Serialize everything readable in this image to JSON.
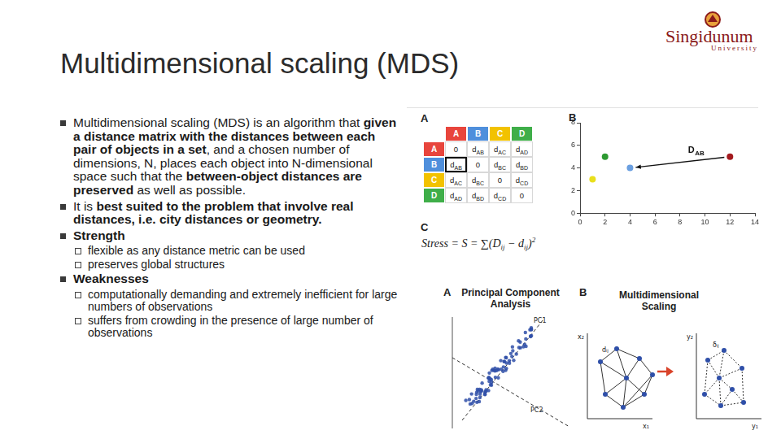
{
  "title": "Multidimensional scaling (MDS)",
  "logo": {
    "name": "Singidunum",
    "subtitle": "University"
  },
  "bullets": [
    {
      "runs": [
        {
          "text": "Multidimensional scaling (MDS) is an algorithm that "
        },
        {
          "text": "given a distance matrix with the distances between each pair of objects in a set",
          "bold": true
        },
        {
          "text": ", and a chosen number of dimensions, N, places each object into N-dimensional space such that the "
        },
        {
          "text": "between-object distances are preserved",
          "bold": true
        },
        {
          "text": " as well as possible."
        }
      ]
    },
    {
      "runs": [
        {
          "text": "It is "
        },
        {
          "text": "best suited to the problem that involve real distances, i.e. city distances or geometry.",
          "bold": true
        }
      ]
    },
    {
      "runs": [
        {
          "text": "Strength",
          "bold": true
        }
      ],
      "items": [
        "flexible as any distance metric can be used",
        "preserves global structures"
      ]
    },
    {
      "runs": [
        {
          "text": "Weaknesses",
          "bold": true
        }
      ],
      "items": [
        "computationally demanding and extremely inefficient for large numbers of observations",
        "suffers from crowding in the presence of large number of observations"
      ]
    }
  ],
  "distance_table": {
    "panel": "A",
    "columns": [
      {
        "name": "A",
        "color": "#e8453c"
      },
      {
        "name": "B",
        "color": "#4f8fdc"
      },
      {
        "name": "C",
        "color": "#f2c200"
      },
      {
        "name": "D",
        "color": "#3fae49"
      }
    ],
    "rows": [
      [
        0,
        "dAB",
        "dAC",
        "dAD"
      ],
      [
        "dAB",
        0,
        "dBC",
        "dBD"
      ],
      [
        "dAC",
        "dBC",
        0,
        "dCD"
      ],
      [
        "dAD",
        "dBD",
        "dCD",
        0
      ]
    ]
  },
  "chart_panel": "B",
  "chart_data": {
    "type": "scatter",
    "x": [
      12,
      4,
      1,
      2
    ],
    "values": [
      5,
      4,
      3,
      5
    ],
    "colors": [
      "#a31a1e",
      "#6a9fe0",
      "#e9df1c",
      "#2e9a32"
    ],
    "xlim": [
      0,
      14
    ],
    "ylim": [
      0,
      8
    ],
    "xticks": [
      0,
      2,
      4,
      6,
      8,
      10,
      12,
      14
    ],
    "yticks": [
      0,
      2,
      4,
      6,
      8
    ],
    "grid": false,
    "annotations": [
      {
        "text": "DAB"
      }
    ]
  },
  "formula_panel": "C",
  "formula": [
    {
      "text": "Stress = S = ∑(D"
    },
    {
      "sub": "ij"
    },
    {
      "text": " − d"
    },
    {
      "sub": "ij"
    },
    {
      "text": ")"
    },
    {
      "sup": "2"
    }
  ],
  "comparison": {
    "pca": {
      "panel": "A",
      "title": "Principal Component Analysis",
      "axes": [
        "PC1",
        "PC2"
      ]
    },
    "mds": {
      "panel": "B",
      "title": "Multidimensional Scaling",
      "input_axes": [
        "x₂",
        "x₁"
      ],
      "input_distance": "dᵢⱼ",
      "output_axes": [
        "y₂",
        "y₁"
      ],
      "output_distance": "δᵢⱼ"
    }
  }
}
